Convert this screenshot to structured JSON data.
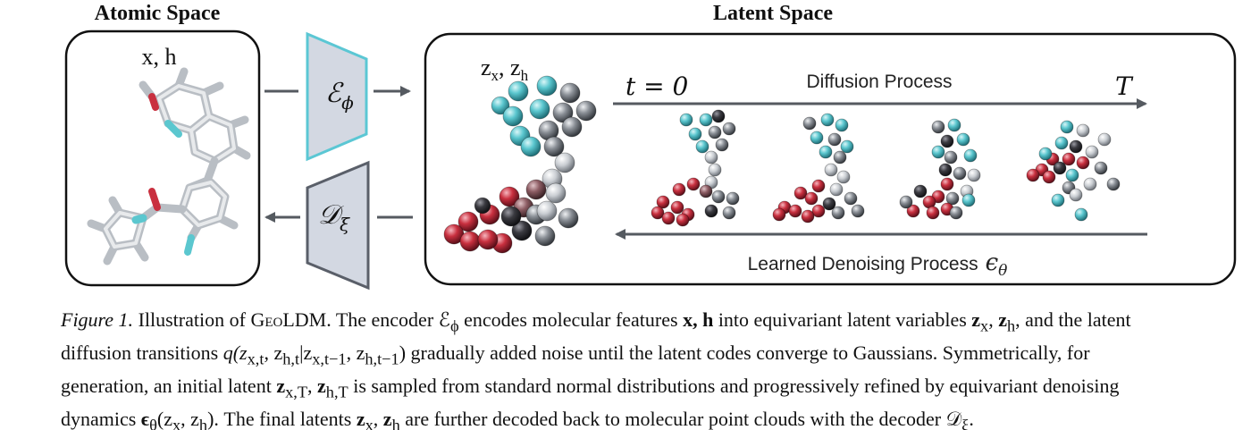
{
  "figure": {
    "atomic_space_title": "Atomic Space",
    "latent_space_title": "Latent Space",
    "atomic_features_label": "x, h",
    "latent_variables_label": "z_x, z_h",
    "latent_sub_x": "x",
    "latent_sub_h": "h",
    "encoder_symbol": "ℰ",
    "encoder_sub": "ϕ",
    "decoder_symbol": "𝒟",
    "decoder_sub": "ξ",
    "t_start_label": "t = 0",
    "t_end_label": "T",
    "diffusion_label": "Diffusion Process",
    "denoising_label": "Learned Denoising Process",
    "denoising_symbol": "ϵ",
    "denoising_sub": "θ"
  },
  "colors": {
    "cyan": "#5bc7cf",
    "red": "#c9303f",
    "gray": "#8a8f96",
    "light_gray": "#c9cdd2",
    "dark": "#2d2d32",
    "encoder_fill": "#d3d8e2",
    "encoder_stroke": "#5bc7d4",
    "decoder_fill": "#d3d8e2",
    "decoder_stroke": "#5a5f69",
    "arrow": "#555a60"
  },
  "caption": {
    "figure_label": "Figure 1.",
    "line1_a": " Illustration of ",
    "model_name": "GeoLDM",
    "line1_b": ". The encoder ℰ",
    "line1_b_sub": "ϕ",
    "line1_c": " encodes molecular features ",
    "bold_xh": "x, h",
    "line1_d": " into equivariant latent variables ",
    "line1_zx": "z",
    "line1_zx_sub": "x",
    "line1_sep": ", ",
    "line1_zh": "z",
    "line1_zh_sub": "h",
    "line1_e": ", and the latent",
    "line2_a": "diffusion transitions ",
    "line2_q": "q(z",
    "line2_q_sub1": "x,t",
    "line2_q_mid1": ", z",
    "line2_q_sub2": "h,t",
    "line2_q_mid2": "|z",
    "line2_q_sub3": "x,t−1",
    "line2_q_mid3": ", z",
    "line2_q_sub4": "h,t−1",
    "line2_q_end": ")",
    "line2_b": " gradually added noise until the latent codes converge to Gaussians. Symmetrically, for",
    "line3_a": "generation, an initial latent ",
    "line3_z1": "z",
    "line3_z1_sub": "x,T",
    "line3_sep": ", ",
    "line3_z2": "z",
    "line3_z2_sub": "h,T",
    "line3_b": " is sampled from standard normal distributions and progressively refined by equivariant denoising",
    "line4_a": "dynamics ",
    "line4_eps": "ϵ",
    "line4_eps_sub": "θ",
    "line4_args_open": "(z",
    "line4_args_sub1": "x",
    "line4_args_mid": ", z",
    "line4_args_sub2": "h",
    "line4_args_close": ")",
    "line4_b": ". The final latents ",
    "line4_z1": "z",
    "line4_z1_sub": "x",
    "line4_sep": ", ",
    "line4_z2": "z",
    "line4_z2_sub": "h",
    "line4_c": " are further decoded back to molecular point clouds with the decoder 𝒟",
    "line4_c_sub": "ξ",
    "line4_end": "."
  }
}
